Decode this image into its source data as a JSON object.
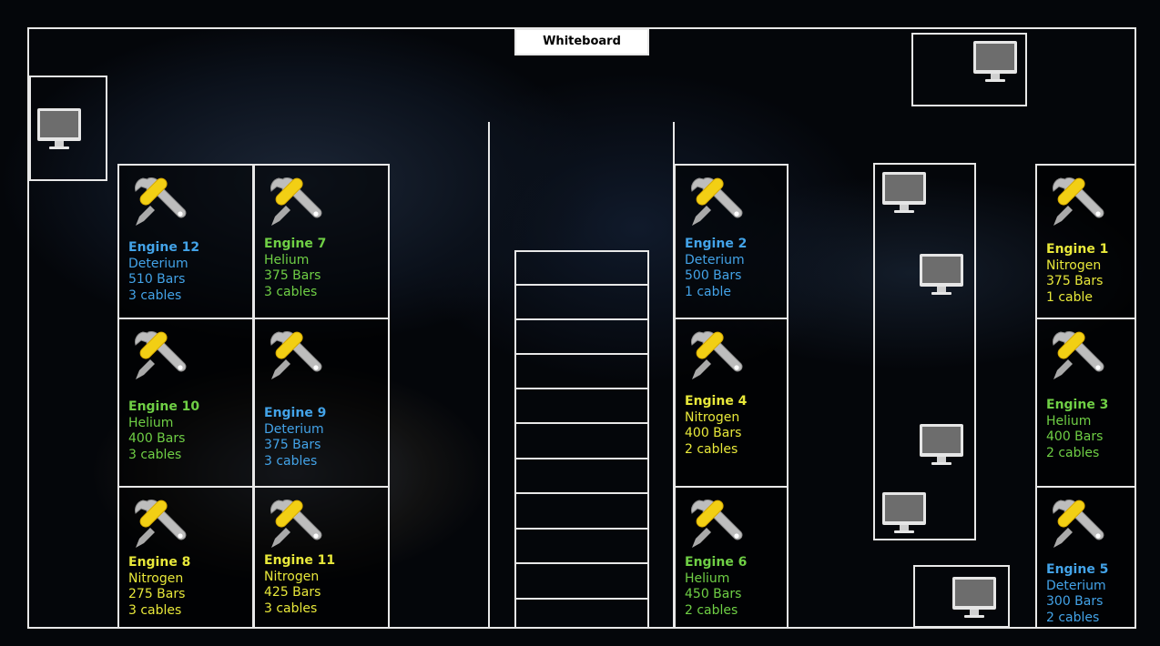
{
  "whiteboard_label": "Whiteboard",
  "colors": {
    "Deterium": "#43a3e8",
    "Helium": "#6fcf45",
    "Nitrogen": "#e8e83a"
  },
  "engines": [
    {
      "name": "Engine 12",
      "gas": "Deterium",
      "pressure": "510 Bars",
      "cables": "3 cables",
      "color": "blue"
    },
    {
      "name": "Engine 7",
      "gas": "Helium",
      "pressure": "375 Bars",
      "cables": "3 cables",
      "color": "green"
    },
    {
      "name": "Engine 10",
      "gas": "Helium",
      "pressure": "400 Bars",
      "cables": "3 cables",
      "color": "green"
    },
    {
      "name": "Engine 9",
      "gas": "Deterium",
      "pressure": "375 Bars",
      "cables": "3 cables",
      "color": "blue"
    },
    {
      "name": "Engine 8",
      "gas": "Nitrogen",
      "pressure": "275 Bars",
      "cables": "3 cables",
      "color": "yellow"
    },
    {
      "name": "Engine 11",
      "gas": "Nitrogen",
      "pressure": "425 Bars",
      "cables": "3 cables",
      "color": "yellow"
    },
    {
      "name": "Engine 2",
      "gas": "Deterium",
      "pressure": "500 Bars",
      "cables": "1 cable",
      "color": "blue"
    },
    {
      "name": "Engine 4",
      "gas": "Nitrogen",
      "pressure": "400 Bars",
      "cables": "2 cables",
      "color": "yellow"
    },
    {
      "name": "Engine 6",
      "gas": "Helium",
      "pressure": "450 Bars",
      "cables": "2 cables",
      "color": "green"
    },
    {
      "name": "Engine 1",
      "gas": "Nitrogen",
      "pressure": "375 Bars",
      "cables": "1 cable",
      "color": "yellow"
    },
    {
      "name": "Engine 3",
      "gas": "Helium",
      "pressure": "400 Bars",
      "cables": "2 cables",
      "color": "green"
    },
    {
      "name": "Engine 5",
      "gas": "Deterium",
      "pressure": "300 Bars",
      "cables": "2 cables",
      "color": "blue"
    }
  ],
  "icons": {
    "engine": "wrench-screwdriver-icon",
    "computer": "monitor-icon"
  }
}
